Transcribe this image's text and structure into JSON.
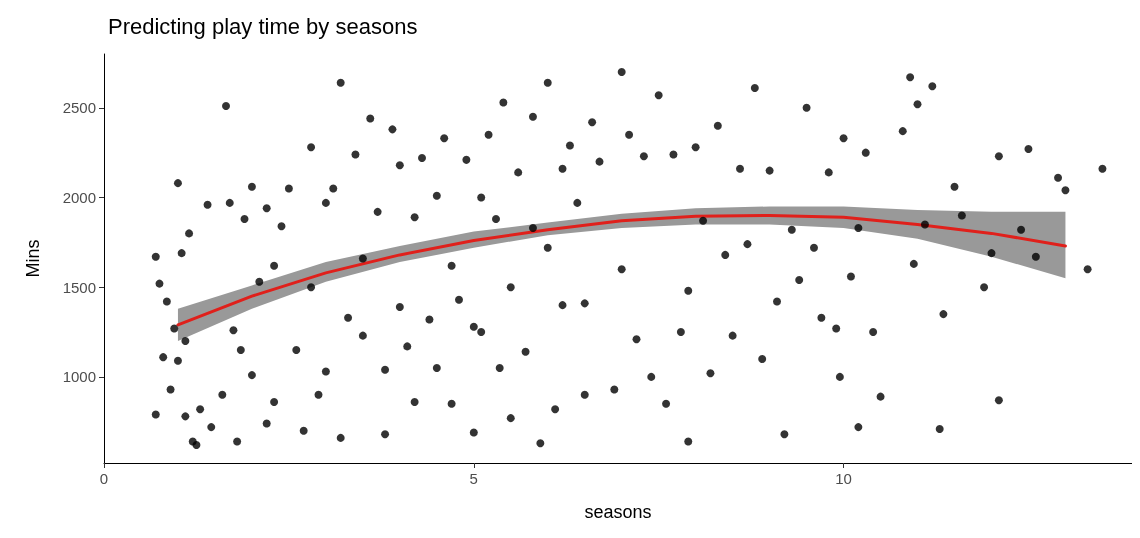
{
  "chart_data": {
    "type": "scatter",
    "title": "Predicting play time by seasons",
    "xlabel": "seasons",
    "ylabel": "Mins",
    "xlim": [
      0,
      13.9
    ],
    "xticks": [
      0,
      5,
      10
    ],
    "ylim": [
      520,
      2800
    ],
    "yticks": [
      1000,
      1500,
      2000,
      2500
    ],
    "grid": false,
    "marker": "circle",
    "series": [
      {
        "color": "#000000",
        "x": [
          0.7,
          0.7,
          0.75,
          0.8,
          0.85,
          0.9,
          0.95,
          1.0,
          1.0,
          1.05,
          1.1,
          1.1,
          1.15,
          1.2,
          1.25,
          1.3,
          1.4,
          1.45,
          1.6,
          1.65,
          1.7,
          1.75,
          1.8,
          1.85,
          1.9,
          2.0,
          2.0,
          2.1,
          2.2,
          2.2,
          2.3,
          2.3,
          2.4,
          2.5,
          2.6,
          2.7,
          2.8,
          2.8,
          2.9,
          3.0,
          3.0,
          3.1,
          3.2,
          3.2,
          3.3,
          3.4,
          3.5,
          3.5,
          3.6,
          3.7,
          3.8,
          3.8,
          3.9,
          4.0,
          4.0,
          4.1,
          4.2,
          4.2,
          4.3,
          4.4,
          4.5,
          4.5,
          4.6,
          4.7,
          4.7,
          4.8,
          4.9,
          5.0,
          5.0,
          5.1,
          5.1,
          5.2,
          5.3,
          5.35,
          5.4,
          5.5,
          5.5,
          5.6,
          5.7,
          5.8,
          5.8,
          5.9,
          6.0,
          6.0,
          6.1,
          6.2,
          6.2,
          6.3,
          6.4,
          6.5,
          6.5,
          6.6,
          6.7,
          6.9,
          7.0,
          7.0,
          7.1,
          7.2,
          7.3,
          7.4,
          7.5,
          7.6,
          7.7,
          7.8,
          7.9,
          7.9,
          8.0,
          8.1,
          8.2,
          8.3,
          8.4,
          8.5,
          8.6,
          8.7,
          8.8,
          8.9,
          9.0,
          9.1,
          9.2,
          9.3,
          9.4,
          9.5,
          9.6,
          9.7,
          9.8,
          9.9,
          9.95,
          10.0,
          10.1,
          10.2,
          10.2,
          10.3,
          10.4,
          10.5,
          10.8,
          10.9,
          10.95,
          11.0,
          11.1,
          11.2,
          11.3,
          11.35,
          11.5,
          11.6,
          11.9,
          12.0,
          12.1,
          12.1,
          12.4,
          12.5,
          12.6,
          12.9,
          13.0,
          13.3,
          13.5
        ],
        "values": [
          790,
          1670,
          1520,
          1110,
          1420,
          930,
          1270,
          1090,
          2080,
          1690,
          780,
          1200,
          1800,
          640,
          620,
          820,
          1960,
          720,
          900,
          2510,
          1970,
          1260,
          640,
          1150,
          1880,
          2060,
          1010,
          1530,
          1940,
          740,
          1620,
          860,
          1840,
          2050,
          1150,
          700,
          1500,
          2280,
          900,
          1970,
          1030,
          2050,
          660,
          2640,
          1330,
          2240,
          1660,
          1230,
          2440,
          1920,
          680,
          1040,
          2380,
          1390,
          2180,
          1170,
          1890,
          860,
          2220,
          1320,
          2010,
          1050,
          2330,
          850,
          1620,
          1430,
          2210,
          690,
          1280,
          1250,
          2000,
          2350,
          1880,
          1050,
          2530,
          1500,
          770,
          2140,
          1140,
          1830,
          2450,
          630,
          2640,
          1720,
          820,
          2160,
          1400,
          2290,
          1970,
          1410,
          900,
          2420,
          2200,
          930,
          2700,
          1600,
          2350,
          1210,
          2230,
          1000,
          2570,
          850,
          2240,
          1250,
          1480,
          640,
          2280,
          1870,
          1020,
          2400,
          1680,
          1230,
          2160,
          1740,
          2610,
          1100,
          2150,
          1420,
          680,
          1820,
          1540,
          2500,
          1720,
          1330,
          2140,
          1270,
          1000,
          2330,
          1560,
          720,
          1830,
          2250,
          1250,
          890,
          2370,
          2670,
          1630,
          2520,
          1850,
          2620,
          710,
          1350,
          2060,
          1900,
          1500,
          1690,
          2230,
          870,
          1820,
          2270,
          1670,
          2110,
          2040,
          1600,
          2160
        ]
      },
      {
        "type": "line",
        "color": "#e0201b",
        "marker": "none",
        "x": [
          1,
          2,
          3,
          4,
          5,
          6,
          7,
          8,
          9,
          10,
          11,
          12,
          13
        ],
        "values": [
          1290,
          1450,
          1580,
          1680,
          1760,
          1820,
          1870,
          1895,
          1900,
          1890,
          1850,
          1800,
          1730
        ],
        "lower": [
          1200,
          1380,
          1530,
          1640,
          1720,
          1790,
          1830,
          1850,
          1850,
          1830,
          1770,
          1670,
          1550
        ],
        "upper": [
          1380,
          1510,
          1640,
          1730,
          1810,
          1860,
          1910,
          1940,
          1950,
          1950,
          1930,
          1920,
          1920
        ]
      }
    ]
  }
}
